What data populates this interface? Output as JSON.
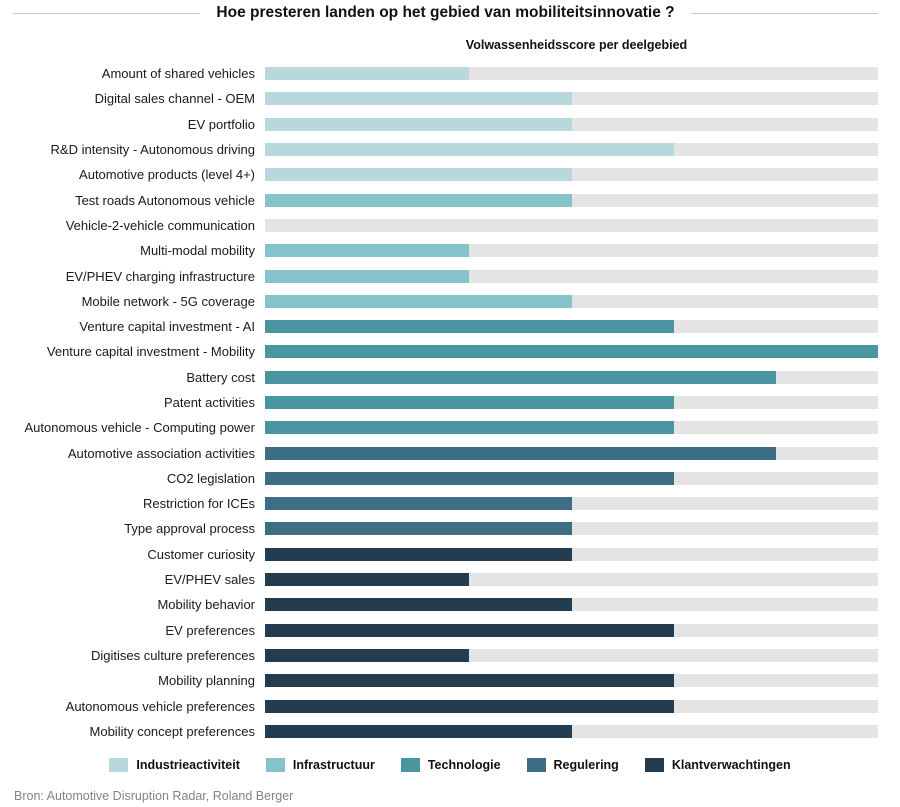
{
  "header": {
    "title": "Hoe presteren landen op het gebied van mobiliteitsinnovatie ?",
    "subtitle": "Volwassenheidsscore per deelgebied"
  },
  "source": "Bron: Automotive Disruption Radar, Roland Berger",
  "colors": {
    "track": "#e4e4e4",
    "industrieactiviteit": "#b9d8de",
    "infrastructuur": "#85c2ca",
    "technologie": "#4a96a0",
    "regulering": "#3d6e86",
    "klantverwachtingen": "#243c50"
  },
  "legend": [
    {
      "label": "Industrieactiviteit",
      "group": "industrieactiviteit"
    },
    {
      "label": "Infrastructuur",
      "group": "infrastructuur"
    },
    {
      "label": "Technologie",
      "group": "technologie"
    },
    {
      "label": "Regulering",
      "group": "regulering"
    },
    {
      "label": "Klantverwachtingen",
      "group": "klantverwachtingen"
    }
  ],
  "chart_data": {
    "type": "bar",
    "orientation": "horizontal",
    "title": "Hoe presteren landen op het gebied van mobiliteitsinnovatie ?",
    "subtitle": "Volwassenheidsscore per deelgebied",
    "value_scale": {
      "min": 0,
      "max": 6,
      "note": "maturity score estimated from bar fill fraction of full track"
    },
    "grid": false,
    "legend_position": "bottom",
    "categories": [
      "Amount of shared vehicles",
      "Digital sales channel - OEM",
      "EV portfolio",
      "R&D intensity - Autonomous driving",
      "Automotive products (level 4+)",
      "Test roads Autonomous vehicle",
      "Vehicle-2-vehicle communication",
      "Multi-modal mobility",
      "EV/PHEV charging infrastructure",
      "Mobile network - 5G coverage",
      "Venture capital investment - AI",
      "Venture capital investment - Mobility",
      "Battery cost",
      "Patent activities",
      "Autonomous vehicle - Computing power",
      "Automotive association activities",
      "CO2 legislation",
      "Restriction for ICEs",
      "Type approval process",
      "Customer curiosity",
      "EV/PHEV sales",
      "Mobility behavior",
      "EV preferences",
      "Digitises culture preferences",
      "Mobility planning",
      "Autonomous vehicle preferences",
      "Mobility concept preferences"
    ],
    "values": [
      2,
      3,
      3,
      4,
      3,
      3,
      0,
      2,
      2,
      3,
      4,
      6,
      5,
      4,
      4,
      5,
      4,
      3,
      3,
      3,
      2,
      3,
      4,
      2,
      4,
      4,
      3
    ],
    "category_groups": [
      "industrieactiviteit",
      "industrieactiviteit",
      "industrieactiviteit",
      "industrieactiviteit",
      "industrieactiviteit",
      "infrastructuur",
      "infrastructuur",
      "infrastructuur",
      "infrastructuur",
      "infrastructuur",
      "technologie",
      "technologie",
      "technologie",
      "technologie",
      "technologie",
      "regulering",
      "regulering",
      "regulering",
      "regulering",
      "klantverwachtingen",
      "klantverwachtingen",
      "klantverwachtingen",
      "klantverwachtingen",
      "klantverwachtingen",
      "klantverwachtingen",
      "klantverwachtingen",
      "klantverwachtingen"
    ],
    "legend_entries": [
      "Industrieactiviteit",
      "Infrastructuur",
      "Technologie",
      "Regulering",
      "Klantverwachtingen"
    ]
  }
}
